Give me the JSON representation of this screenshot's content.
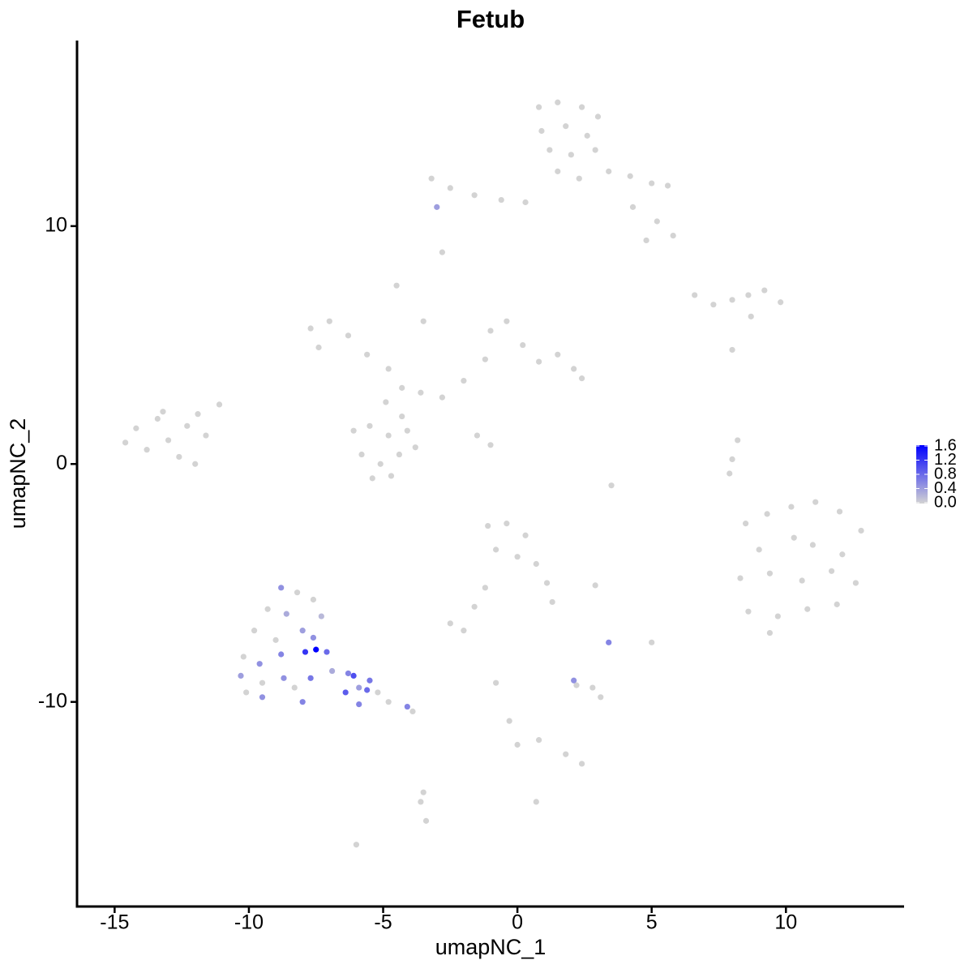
{
  "chart_data": {
    "type": "scatter",
    "title": "Fetub",
    "x_label": "umapNC_1",
    "y_label": "umapNC_2",
    "x": [
      0.8,
      1.5,
      2.4,
      3.0,
      0.9,
      1.8,
      2.6,
      1.2,
      2.0,
      2.9,
      1.5,
      2.3,
      3.4,
      4.2,
      5.0,
      5.6,
      4.3,
      5.2,
      5.8,
      4.8,
      -3.2,
      -2.5,
      -1.6,
      -0.6,
      0.3,
      -3.0,
      -2.8,
      -4.5,
      -3.5,
      8.0,
      -7.7,
      -7.0,
      -6.3,
      -7.4,
      -5.6,
      -4.8,
      -4.3,
      -3.6,
      -2.8,
      -2.0,
      -1.2,
      -1.0,
      -0.4,
      0.2,
      0.8,
      1.5,
      2.1,
      2.4,
      -1.5,
      -1.0,
      -6.1,
      -5.5,
      -4.8,
      -4.1,
      -5.8,
      -5.1,
      -4.4,
      -3.8,
      -5.4,
      -4.7,
      -4.3,
      -4.9,
      -14.6,
      -14.2,
      -13.8,
      -13.4,
      -13.0,
      -12.6,
      -12.3,
      -11.9,
      -11.6,
      -11.1,
      -13.2,
      -12.0,
      6.6,
      7.3,
      8.0,
      8.6,
      9.2,
      9.8,
      8.7,
      8.2,
      8.0,
      7.9,
      8.5,
      9.3,
      10.2,
      11.1,
      12.0,
      12.8,
      9.0,
      10.3,
      11.0,
      12.1,
      8.3,
      9.4,
      10.6,
      11.7,
      12.6,
      8.6,
      9.7,
      10.8,
      11.9,
      9.4,
      -1.1,
      -0.4,
      0.3,
      -0.8,
      0.0,
      0.7,
      1.1,
      1.3,
      -1.2,
      -1.6,
      -2.5,
      -2.0,
      2.9,
      3.4,
      5.0,
      3.5,
      2.2,
      2.8,
      3.1,
      2.1,
      -0.8,
      -0.3,
      0.0,
      0.8,
      1.8,
      2.4,
      -3.6,
      -3.4,
      -3.5,
      0.7,
      -6.0,
      -8.8,
      -8.2,
      -7.6,
      -9.3,
      -8.6,
      -7.3,
      -9.8,
      -9.0,
      -8.0,
      -7.6,
      -10.2,
      -9.6,
      -8.8,
      -7.9,
      -7.5,
      -7.1,
      -10.3,
      -9.5,
      -8.7,
      -7.7,
      -6.9,
      -6.3,
      -6.1,
      -10.1,
      -9.5,
      -8.0,
      -6.4,
      -5.9,
      -5.5,
      -5.2,
      -4.8,
      -4.1,
      -5.9,
      -3.9,
      -5.6,
      -8.3
    ],
    "y": [
      15.0,
      15.2,
      15.0,
      14.6,
      14.0,
      14.2,
      13.8,
      13.2,
      13.0,
      13.2,
      12.3,
      12.0,
      12.3,
      12.1,
      11.8,
      11.7,
      10.8,
      10.2,
      9.6,
      9.4,
      12.0,
      11.6,
      11.3,
      11.1,
      11.0,
      10.8,
      8.9,
      7.5,
      6.0,
      4.8,
      5.7,
      6.0,
      5.4,
      4.9,
      4.6,
      4.0,
      3.2,
      3.0,
      2.8,
      3.5,
      4.4,
      5.6,
      6.0,
      5.0,
      4.3,
      4.6,
      4.0,
      3.6,
      1.2,
      0.8,
      1.4,
      1.6,
      1.2,
      1.4,
      0.4,
      0.0,
      0.4,
      0.7,
      -0.6,
      -0.5,
      2.0,
      2.6,
      0.9,
      1.5,
      0.6,
      1.9,
      1.0,
      0.3,
      1.6,
      2.1,
      1.2,
      2.5,
      2.2,
      0.0,
      7.1,
      6.7,
      6.9,
      7.1,
      7.3,
      6.8,
      6.2,
      1.0,
      0.2,
      -0.4,
      -2.5,
      -2.1,
      -1.8,
      -1.6,
      -2.0,
      -2.8,
      -3.6,
      -3.1,
      -3.4,
      -3.8,
      -4.8,
      -4.6,
      -4.9,
      -4.5,
      -5.0,
      -6.2,
      -6.4,
      -6.1,
      -5.9,
      -7.1,
      -2.6,
      -2.5,
      -3.0,
      -3.6,
      -3.9,
      -4.2,
      -5.0,
      -5.8,
      -5.2,
      -6.0,
      -6.7,
      -7.0,
      -5.1,
      -7.5,
      -7.5,
      -0.9,
      -9.3,
      -9.4,
      -9.8,
      -9.1,
      -9.2,
      -10.8,
      -11.8,
      -11.6,
      -12.2,
      -12.6,
      -14.2,
      -15.0,
      -13.8,
      -14.2,
      -16.0,
      -5.2,
      -5.4,
      -5.7,
      -6.1,
      -6.3,
      -6.4,
      -7.0,
      -7.4,
      -7.0,
      -7.3,
      -8.1,
      -8.4,
      -8.0,
      -7.9,
      -7.8,
      -7.9,
      -8.9,
      -9.2,
      -9.0,
      -9.0,
      -8.7,
      -8.8,
      -8.9,
      -9.6,
      -9.8,
      -10.0,
      -9.6,
      -9.4,
      -9.1,
      -9.6,
      -10.0,
      -10.2,
      -10.1,
      -10.4,
      -9.5,
      -9.4
    ],
    "values": [
      0,
      0,
      0,
      0,
      0,
      0,
      0,
      0,
      0,
      0,
      0,
      0,
      0,
      0,
      0,
      0,
      0,
      0,
      0,
      0,
      0,
      0,
      0,
      0,
      0,
      0.4,
      0,
      0,
      0,
      0,
      0,
      0,
      0,
      0,
      0,
      0,
      0,
      0,
      0,
      0,
      0,
      0,
      0,
      0,
      0,
      0,
      0,
      0,
      0,
      0,
      0,
      0,
      0,
      0,
      0,
      0,
      0,
      0,
      0,
      0,
      0,
      0,
      0,
      0,
      0,
      0,
      0,
      0,
      0,
      0,
      0,
      0,
      0,
      0,
      0,
      0,
      0,
      0,
      0,
      0,
      0,
      0,
      0,
      0,
      0,
      0,
      0,
      0,
      0,
      0,
      0,
      0,
      0,
      0,
      0,
      0,
      0,
      0,
      0,
      0,
      0,
      0,
      0,
      0,
      0,
      0,
      0,
      0,
      0,
      0,
      0,
      0,
      0,
      0,
      0,
      0,
      0,
      0.6,
      0,
      0,
      0,
      0,
      0,
      0.5,
      0,
      0,
      0,
      0,
      0,
      0,
      0,
      0,
      0,
      0,
      0,
      0.5,
      0,
      0,
      0,
      0.3,
      0.2,
      0,
      0,
      0.4,
      0.5,
      0,
      0.5,
      0.6,
      1.2,
      1.6,
      0.8,
      0.4,
      0,
      0.5,
      0.7,
      0.3,
      0.6,
      1.0,
      0,
      0.5,
      0.6,
      0.9,
      0.4,
      0.7,
      0,
      0,
      0.6,
      0.6,
      0,
      0.8,
      0
    ],
    "xlim": [
      -16.4,
      14.4
    ],
    "ylim": [
      -18.6,
      17.8
    ],
    "xticks": [
      -15,
      -10,
      -5,
      0,
      5,
      10
    ],
    "yticks": [
      -10,
      0,
      10
    ],
    "color_scale": {
      "low": "#d3d3d3",
      "high": "#0000ff",
      "lim": [
        0,
        1.6
      ],
      "ticks": [
        {
          "value": 0,
          "label": "0.0"
        },
        0.4,
        0.8,
        1.2,
        1.6
      ]
    }
  }
}
